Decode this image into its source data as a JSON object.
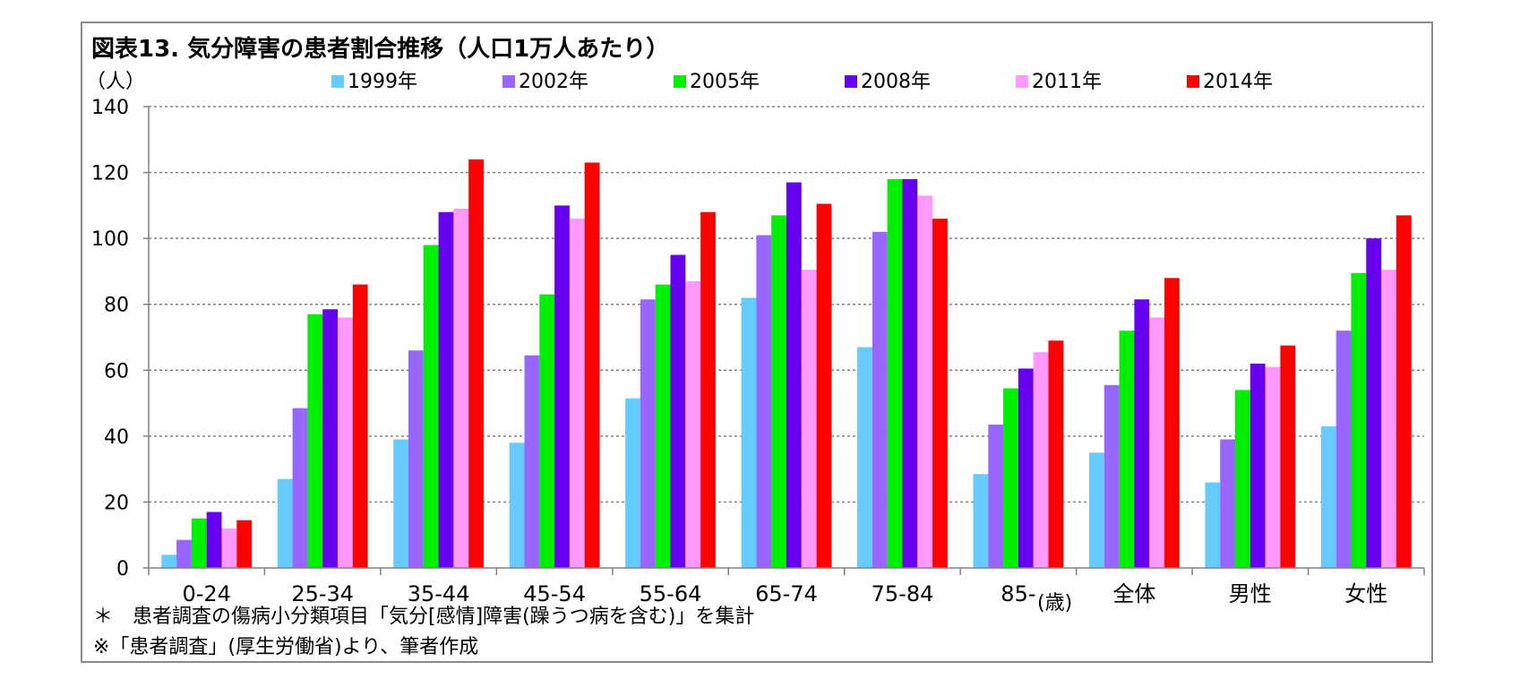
{
  "title": "図表13. 気分障害の患者割合推移（人口1万人あたり）",
  "footnotes": [
    "＊　患者調査の傷病小分類項目「気分[感情]障害(躁うつ病を含む)」を集計",
    "※「患者調査」(厚生労働省)より、筆者作成"
  ],
  "chart_data": {
    "type": "bar",
    "title": "図表13. 気分障害の患者割合推移（人口1万人あたり）",
    "ylabel": "（人）",
    "xlabel": "",
    "x_unit_label": "(歳)",
    "ylim": [
      0,
      140
    ],
    "yticks": [
      0,
      20,
      40,
      60,
      80,
      100,
      120,
      140
    ],
    "grid": true,
    "legend_position": "top",
    "categories": [
      "0-24",
      "25-34",
      "35-44",
      "45-54",
      "55-64",
      "65-74",
      "75-84",
      "85-",
      "全体",
      "男性",
      "女性"
    ],
    "series": [
      {
        "name": "1999年",
        "color": "#66CCFF",
        "values": [
          4,
          27,
          39,
          38,
          51.5,
          82,
          67,
          28.5,
          35,
          26,
          43
        ]
      },
      {
        "name": "2002年",
        "color": "#9966FF",
        "values": [
          8.5,
          48.5,
          66,
          64.5,
          81.5,
          101,
          102,
          43.5,
          55.5,
          39,
          72
        ]
      },
      {
        "name": "2005年",
        "color": "#00EE00",
        "values": [
          15,
          77,
          98,
          83,
          86,
          107,
          118,
          54.5,
          72,
          54,
          89.5
        ]
      },
      {
        "name": "2008年",
        "color": "#6600EE",
        "values": [
          17,
          78.5,
          108,
          110,
          95,
          117,
          118,
          60.5,
          81.5,
          62,
          100
        ]
      },
      {
        "name": "2011年",
        "color": "#FF99FF",
        "values": [
          12,
          76,
          109,
          106,
          87,
          90.5,
          113,
          65.5,
          76,
          61,
          90.5
        ]
      },
      {
        "name": "2014年",
        "color": "#FF0000",
        "values": [
          14.5,
          86,
          124,
          123,
          108,
          110.5,
          106,
          69,
          88,
          67.5,
          107
        ]
      }
    ]
  }
}
